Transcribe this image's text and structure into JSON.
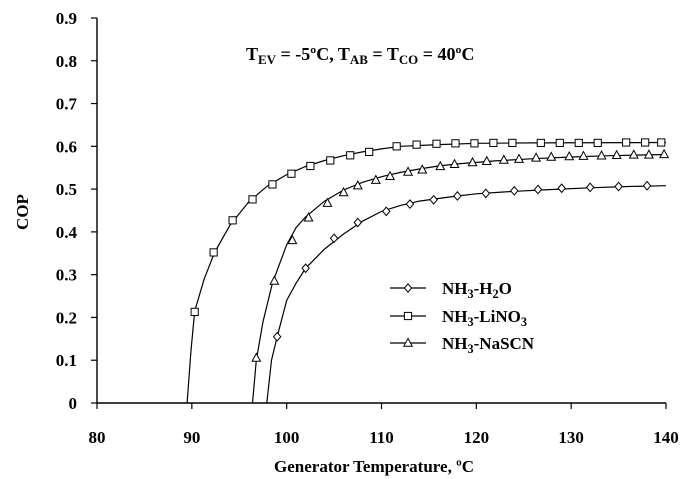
{
  "chart_data": {
    "type": "line",
    "xlabel": "Generator Temperature, ºC",
    "ylabel": "COP",
    "xlim": [
      80,
      140
    ],
    "ylim": [
      0,
      0.9
    ],
    "xticks": [
      "80",
      "90",
      "100",
      "110",
      "120",
      "130",
      "140"
    ],
    "yticks": [
      "0",
      "0.1",
      "0.2",
      "0.3",
      "0.4",
      "0.5",
      "0.6",
      "0.7",
      "0.8",
      "0.9"
    ],
    "grid": false,
    "legend_position": "center-right",
    "condition_note": {
      "parts": [
        {
          "t": "T",
          "s": "n"
        },
        {
          "t": "EV",
          "s": "sub"
        },
        {
          "t": " = -5ºC, T",
          "s": "n"
        },
        {
          "t": "AB",
          "s": "sub"
        },
        {
          "t": " = T",
          "s": "n"
        },
        {
          "t": "CO",
          "s": "sub"
        },
        {
          "t": " = 40ºC",
          "s": "n"
        }
      ]
    },
    "series": [
      {
        "name": "NH3-H2O",
        "label_parts": [
          {
            "t": "NH",
            "s": "n"
          },
          {
            "t": "3",
            "s": "sub"
          },
          {
            "t": "-H",
            "s": "n"
          },
          {
            "t": "2",
            "s": "sub"
          },
          {
            "t": "O",
            "s": "n"
          }
        ],
        "marker": "diamond",
        "line": [
          [
            97.9,
            0
          ],
          [
            98.4,
            0.1
          ],
          [
            99,
            0.155
          ],
          [
            100,
            0.24
          ],
          [
            101,
            0.28
          ],
          [
            102,
            0.315
          ],
          [
            104,
            0.36
          ],
          [
            106,
            0.395
          ],
          [
            108,
            0.425
          ],
          [
            110,
            0.448
          ],
          [
            112,
            0.462
          ],
          [
            114,
            0.472
          ],
          [
            116,
            0.478
          ],
          [
            118,
            0.484
          ],
          [
            120,
            0.489
          ],
          [
            124,
            0.495
          ],
          [
            128,
            0.499
          ],
          [
            132,
            0.503
          ],
          [
            136,
            0.506
          ],
          [
            140,
            0.508
          ]
        ],
        "points": [
          [
            99,
            0.155
          ],
          [
            102,
            0.315
          ],
          [
            105,
            0.385
          ],
          [
            107.5,
            0.422
          ],
          [
            110.5,
            0.448
          ],
          [
            113,
            0.465
          ],
          [
            115.5,
            0.475
          ],
          [
            118,
            0.484
          ],
          [
            121,
            0.49
          ],
          [
            124,
            0.496
          ],
          [
            126.5,
            0.499
          ],
          [
            129,
            0.502
          ],
          [
            132,
            0.504
          ],
          [
            135,
            0.506
          ],
          [
            138,
            0.508
          ]
        ]
      },
      {
        "name": "NH3-LiNO3",
        "label_parts": [
          {
            "t": "NH",
            "s": "n"
          },
          {
            "t": "3",
            "s": "sub"
          },
          {
            "t": "-LiNO",
            "s": "n"
          },
          {
            "t": "3",
            "s": "sub"
          }
        ],
        "marker": "square",
        "line": [
          [
            89.5,
            0
          ],
          [
            89.9,
            0.12
          ],
          [
            90.3,
            0.215
          ],
          [
            91.3,
            0.29
          ],
          [
            92.4,
            0.352
          ],
          [
            94,
            0.415
          ],
          [
            96,
            0.47
          ],
          [
            98,
            0.508
          ],
          [
            100,
            0.534
          ],
          [
            102,
            0.553
          ],
          [
            104,
            0.567
          ],
          [
            106,
            0.578
          ],
          [
            108,
            0.587
          ],
          [
            110,
            0.594
          ],
          [
            112,
            0.6
          ],
          [
            116,
            0.604
          ],
          [
            120,
            0.607
          ],
          [
            126,
            0.608
          ],
          [
            140,
            0.609
          ]
        ],
        "points": [
          [
            90.3,
            0.213
          ],
          [
            92.3,
            0.352
          ],
          [
            94.3,
            0.427
          ],
          [
            96.4,
            0.476
          ],
          [
            98.5,
            0.511
          ],
          [
            100.5,
            0.536
          ],
          [
            102.5,
            0.554
          ],
          [
            104.6,
            0.567
          ],
          [
            106.7,
            0.579
          ],
          [
            108.7,
            0.587
          ],
          [
            111.6,
            0.6
          ],
          [
            113.7,
            0.604
          ],
          [
            115.8,
            0.606
          ],
          [
            117.8,
            0.607
          ],
          [
            119.8,
            0.607
          ],
          [
            121.8,
            0.608
          ],
          [
            123.8,
            0.608
          ],
          [
            126.8,
            0.608
          ],
          [
            128.8,
            0.608
          ],
          [
            130.8,
            0.608
          ],
          [
            132.8,
            0.608
          ],
          [
            135.8,
            0.609
          ],
          [
            137.8,
            0.609
          ],
          [
            139.5,
            0.609
          ]
        ]
      },
      {
        "name": "NH3-NaSCN",
        "label_parts": [
          {
            "t": "NH",
            "s": "n"
          },
          {
            "t": "3",
            "s": "sub"
          },
          {
            "t": "-NaSCN",
            "s": "n"
          }
        ],
        "marker": "triangle",
        "line": [
          [
            96.4,
            0
          ],
          [
            96.8,
            0.1
          ],
          [
            97.5,
            0.19
          ],
          [
            98.5,
            0.28
          ],
          [
            100,
            0.37
          ],
          [
            101,
            0.41
          ],
          [
            102,
            0.435
          ],
          [
            104,
            0.472
          ],
          [
            106,
            0.498
          ],
          [
            108,
            0.516
          ],
          [
            110,
            0.529
          ],
          [
            112,
            0.539
          ],
          [
            114,
            0.547
          ],
          [
            116,
            0.554
          ],
          [
            118,
            0.559
          ],
          [
            122,
            0.566
          ],
          [
            126,
            0.571
          ],
          [
            130,
            0.575
          ],
          [
            134,
            0.578
          ],
          [
            140,
            0.581
          ]
        ],
        "points": [
          [
            96.8,
            0.105
          ],
          [
            98.7,
            0.285
          ],
          [
            100.6,
            0.38
          ],
          [
            102.3,
            0.433
          ],
          [
            104.3,
            0.467
          ],
          [
            106,
            0.492
          ],
          [
            107.5,
            0.508
          ],
          [
            109.4,
            0.521
          ],
          [
            110.9,
            0.53
          ],
          [
            112.8,
            0.54
          ],
          [
            114.3,
            0.545
          ],
          [
            116.2,
            0.553
          ],
          [
            117.7,
            0.558
          ],
          [
            119.6,
            0.562
          ],
          [
            121.1,
            0.565
          ],
          [
            122.9,
            0.568
          ],
          [
            124.5,
            0.57
          ],
          [
            126.3,
            0.573
          ],
          [
            127.9,
            0.575
          ],
          [
            129.8,
            0.576
          ],
          [
            131.3,
            0.577
          ],
          [
            133.2,
            0.578
          ],
          [
            134.8,
            0.579
          ],
          [
            136.6,
            0.58
          ],
          [
            138.2,
            0.58
          ],
          [
            139.8,
            0.581
          ]
        ]
      }
    ]
  }
}
